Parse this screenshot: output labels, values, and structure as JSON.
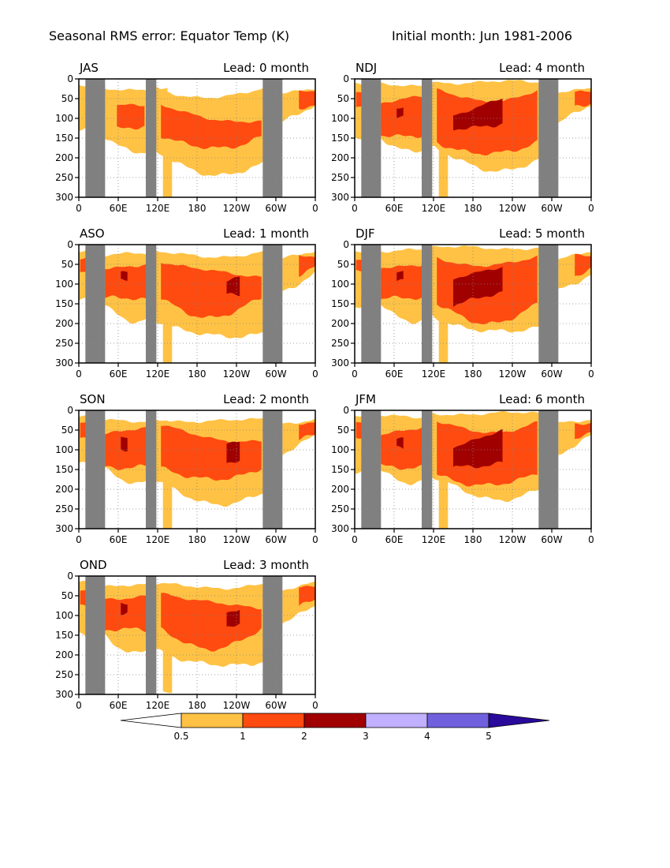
{
  "header": {
    "title": "Seasonal RMS error: Equator Temp (K)",
    "initial": "Initial month: Jun 1981-2006"
  },
  "lead_label": "Lead:",
  "lead_unit": "month",
  "x_ticks": [
    "0",
    "60E",
    "120E",
    "180",
    "120W",
    "60W",
    "0"
  ],
  "y_ticks": [
    "0",
    "50",
    "100",
    "150",
    "200",
    "250",
    "300"
  ],
  "colors": {
    "c1": "#ffc244",
    "c2": "#ff4a10",
    "c3": "#a00000",
    "c4": "#c0b0ff",
    "c5": "#7060dd",
    "c6": "#2a0a9a",
    "land": "#808080"
  },
  "chart_data": {
    "type": "heatmap",
    "xlim": [
      0,
      360
    ],
    "ylim": [
      0,
      300
    ],
    "y_inverted": true,
    "grid": true,
    "land_masks_longitude": [
      [
        10,
        40
      ],
      [
        102,
        118
      ],
      [
        280,
        310
      ]
    ],
    "colorbar": {
      "levels": [
        0.5,
        1,
        2,
        3,
        4,
        5
      ],
      "colors": [
        "#ffc244",
        "#ff4a10",
        "#a00000",
        "#c0b0ff",
        "#7060dd"
      ],
      "extend": "both"
    },
    "panels": [
      {
        "season": "JAS",
        "lead": 0,
        "approx_max_rms": 2
      },
      {
        "season": "ASO",
        "lead": 1,
        "approx_max_rms": 3
      },
      {
        "season": "SON",
        "lead": 2,
        "approx_max_rms": 3
      },
      {
        "season": "OND",
        "lead": 3,
        "approx_max_rms": 3
      },
      {
        "season": "NDJ",
        "lead": 4,
        "approx_max_rms": 3
      },
      {
        "season": "DJF",
        "lead": 5,
        "approx_max_rms": 3
      },
      {
        "season": "JFM",
        "lead": 6,
        "approx_max_rms": 3
      }
    ]
  }
}
